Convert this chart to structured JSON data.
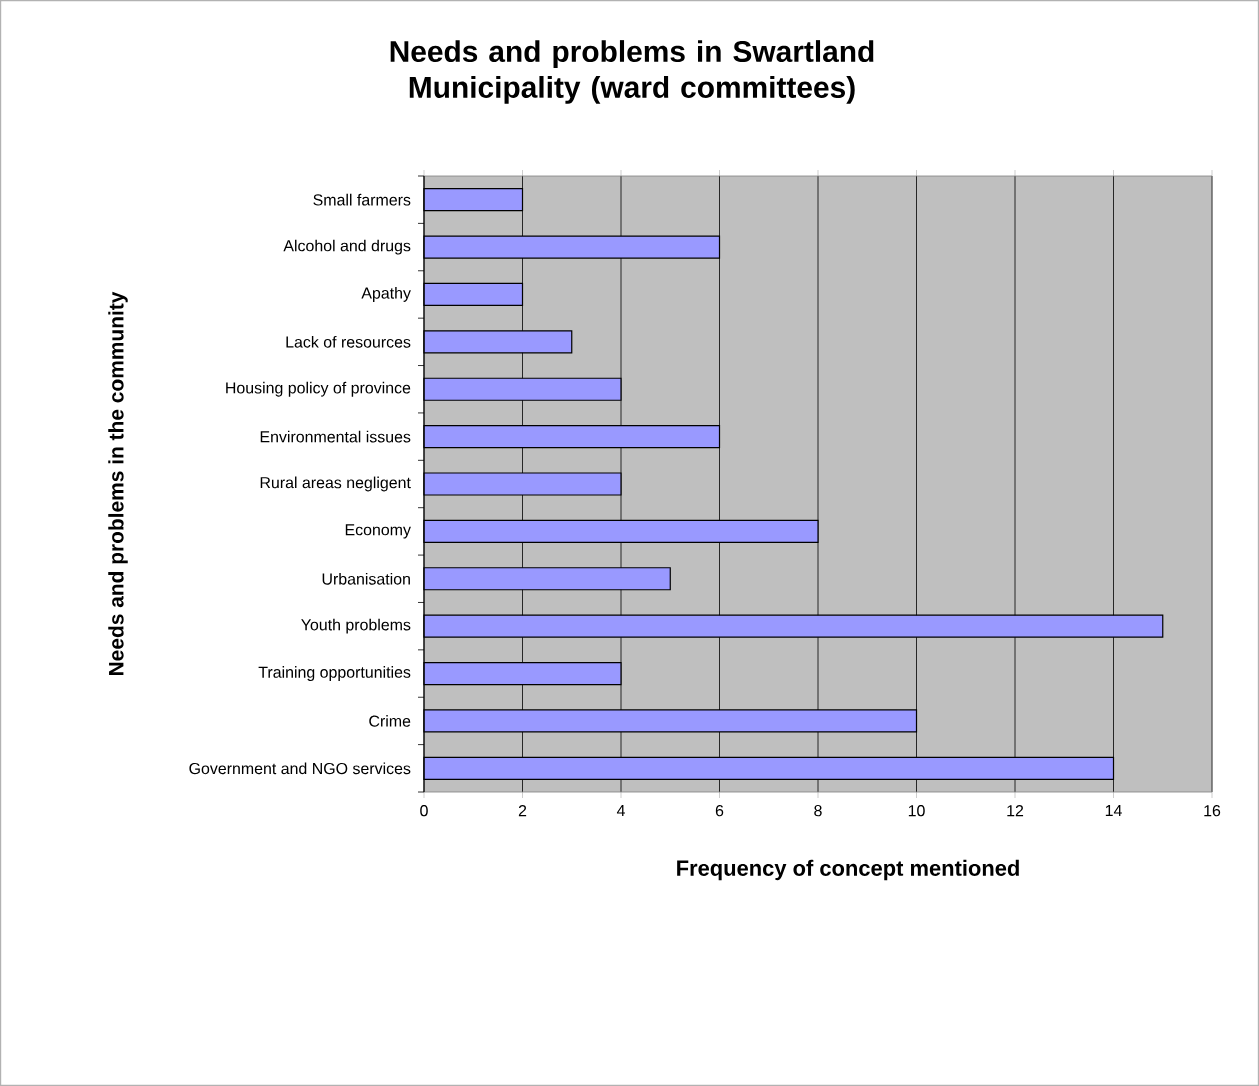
{
  "chart_data": {
    "type": "bar",
    "orientation": "horizontal",
    "title": "Needs and problems in Swartland Municipality (ward committees)",
    "xlabel": "Frequency of concept mentioned",
    "ylabel": "Needs and problems in the community",
    "categories": [
      "Small farmers",
      "Alcohol and drugs",
      "Apathy",
      "Lack of resources",
      "Housing policy of province",
      "Environmental issues",
      "Rural areas negligent",
      "Economy",
      "Urbanisation",
      "Youth problems",
      "Training opportunities",
      "Crime",
      "Government and NGO services"
    ],
    "values": [
      2,
      6,
      2,
      3,
      4,
      6,
      4,
      8,
      5,
      15,
      4,
      10,
      14
    ],
    "color": "#9999ff",
    "xlim": [
      0,
      16
    ],
    "xticks": [
      0,
      2,
      4,
      6,
      8,
      10,
      12,
      14,
      16
    ],
    "grid": "x"
  }
}
